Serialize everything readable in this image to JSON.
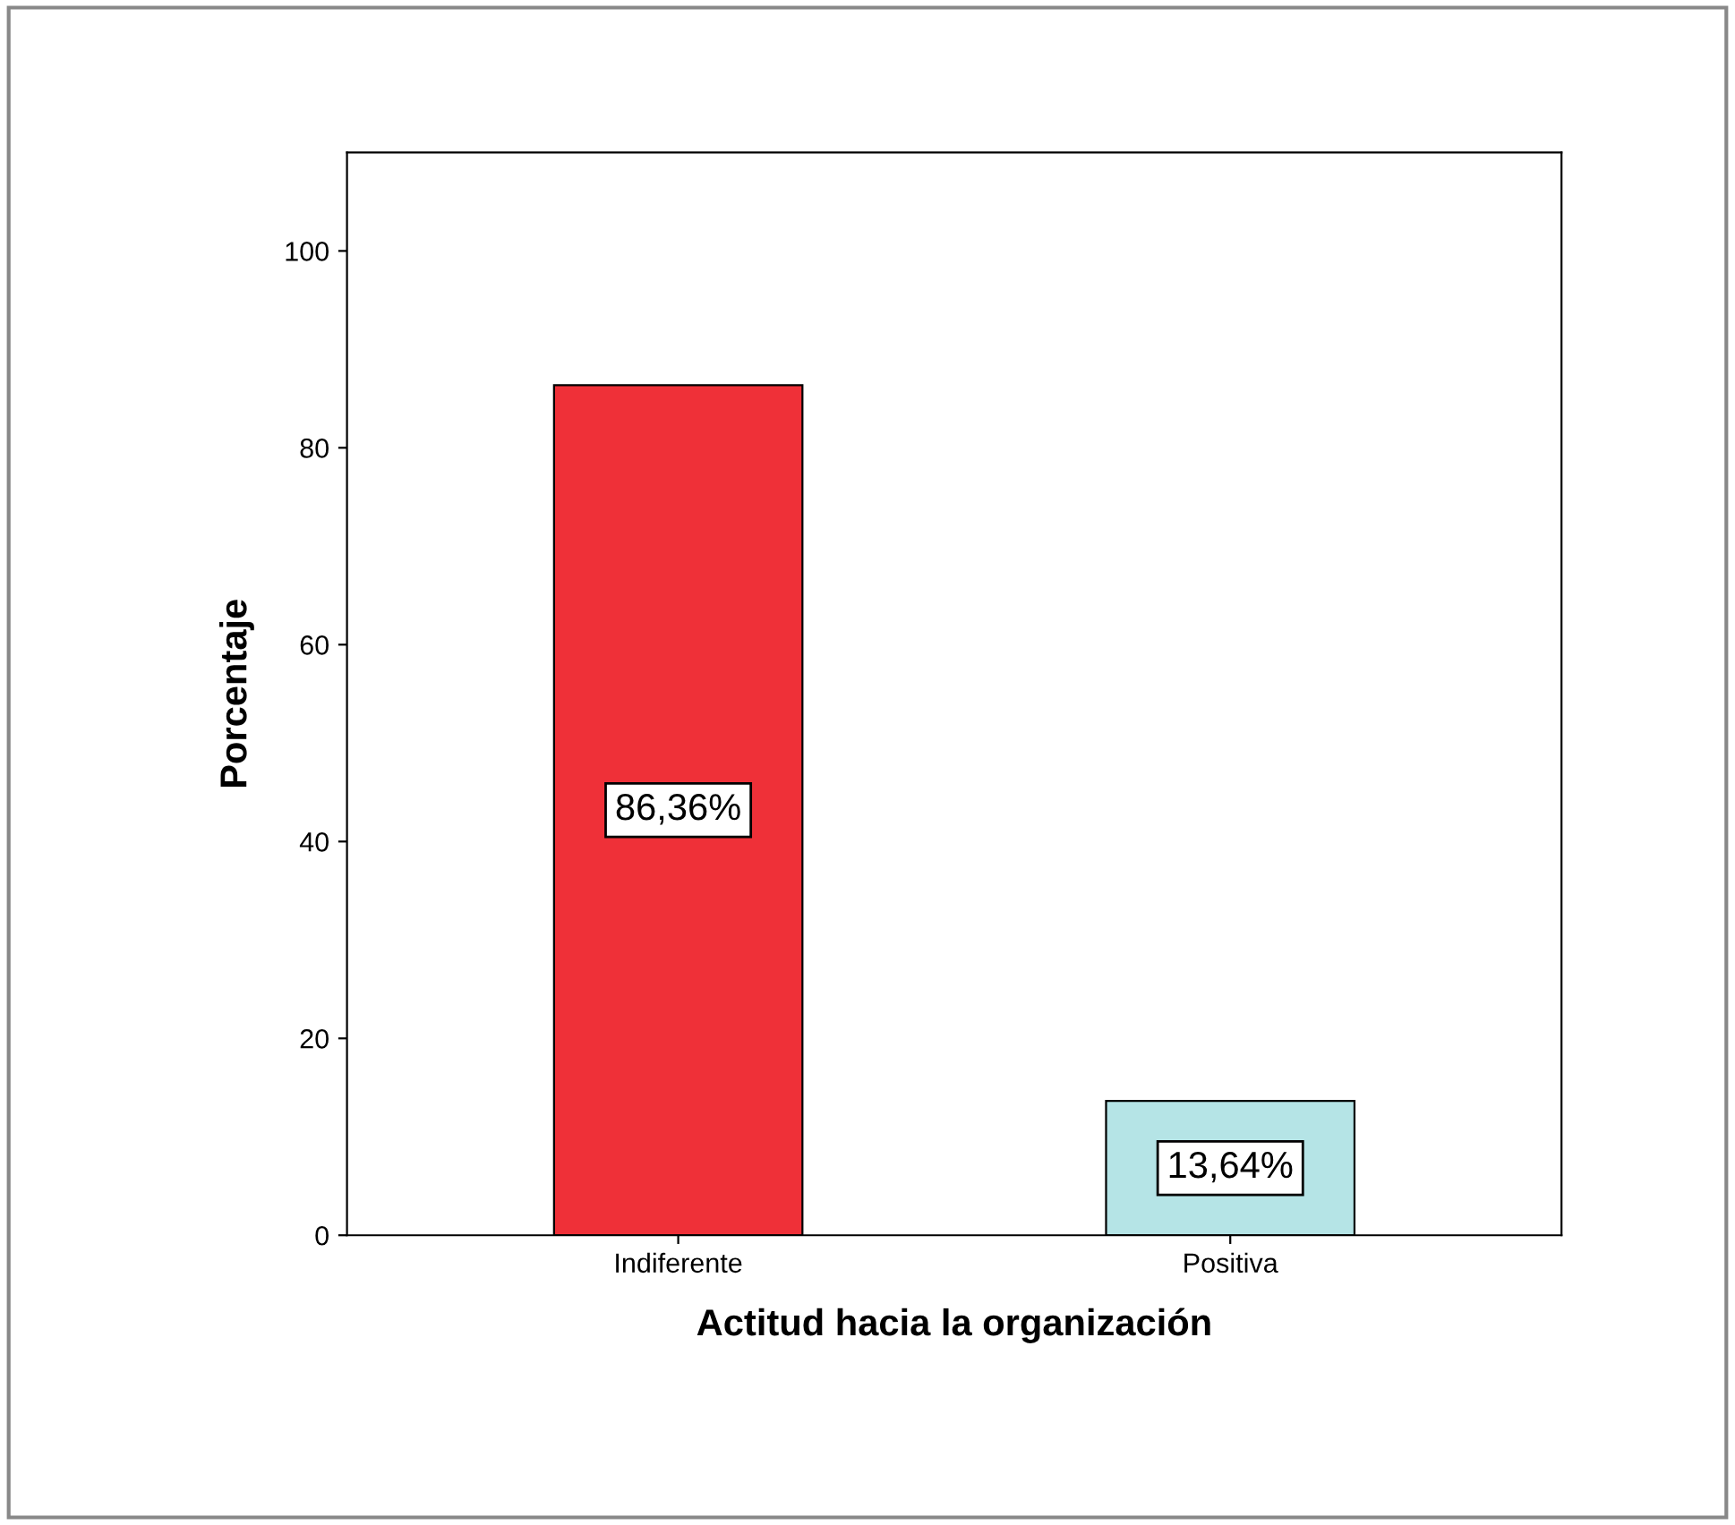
{
  "chart_data": {
    "type": "bar",
    "xlabel": "Actitud hacia la organización",
    "ylabel": "Porcentaje",
    "categories": [
      "Indiferente",
      "Positiva"
    ],
    "values": [
      86.36,
      13.64
    ],
    "colors": [
      "#ef3038",
      "#b5e4e6"
    ],
    "value_labels": [
      "86,36%",
      "13,64%"
    ],
    "ylim": [
      0,
      110
    ],
    "yticks": [
      0,
      20,
      40,
      60,
      80,
      100
    ],
    "grid": false
  }
}
